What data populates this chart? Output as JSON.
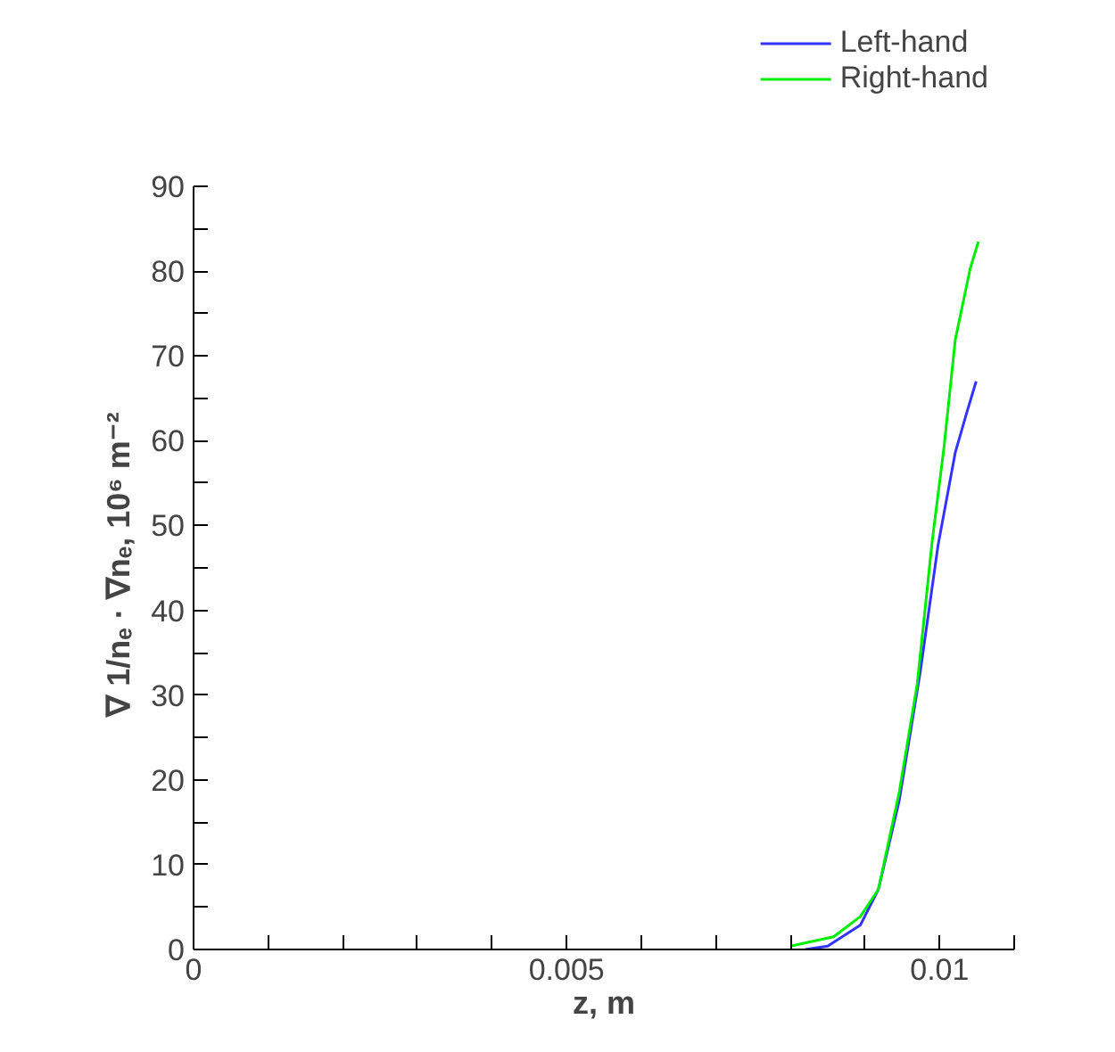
{
  "chart_data": {
    "type": "line",
    "xlabel": "z, m",
    "ylabel": "∇ 1/nₑ · ∇nₑ, 10⁶ m⁻²",
    "series": [
      {
        "name": "Left-hand",
        "color": "#3333ff",
        "x": [
          0.0082,
          0.0085,
          0.00894,
          0.00918,
          0.00946,
          0.00974,
          0.00998,
          0.01021,
          0.01037,
          0.01049
        ],
        "values": [
          0,
          0.4,
          2.9,
          7.1,
          17.6,
          32.7,
          47.7,
          58.6,
          63.5,
          67.0
        ]
      },
      {
        "name": "Right-hand",
        "color": "#00ee00",
        "x": [
          0.008,
          0.00858,
          0.00894,
          0.00918,
          0.00946,
          0.0097,
          0.0099,
          0.01006,
          0.01021,
          0.01041,
          0.01052
        ],
        "values": [
          0.4,
          1.5,
          3.9,
          7.1,
          18.6,
          31.3,
          48.1,
          59.3,
          71.9,
          80.3,
          83.5
        ]
      }
    ],
    "xlim": [
      0,
      0.011
    ],
    "xticks": [
      0,
      {
        "value": 0.001,
        "label": null
      },
      {
        "value": 0.002,
        "label": null
      },
      {
        "value": 0.003,
        "label": null
      },
      {
        "value": 0.004,
        "label": null
      },
      0.005,
      {
        "value": 0.006,
        "label": null
      },
      {
        "value": 0.007,
        "label": null
      },
      {
        "value": 0.008,
        "label": null
      },
      {
        "value": 0.009,
        "label": null
      },
      0.01,
      {
        "value": 0.011,
        "label": null
      }
    ],
    "ylim": [
      0,
      90
    ],
    "yticks": [
      0,
      {
        "value": 5,
        "label": null
      },
      10,
      {
        "value": 15,
        "label": null
      },
      20,
      {
        "value": 25,
        "label": null
      },
      30,
      {
        "value": 35,
        "label": null
      },
      40,
      {
        "value": 45,
        "label": null
      },
      50,
      {
        "value": 55,
        "label": null
      },
      60,
      {
        "value": 65,
        "label": null
      },
      70,
      {
        "value": 75,
        "label": null
      },
      80,
      {
        "value": 85,
        "label": null
      },
      90
    ],
    "grid": false,
    "legend": "top right",
    "line_style": "solid"
  }
}
